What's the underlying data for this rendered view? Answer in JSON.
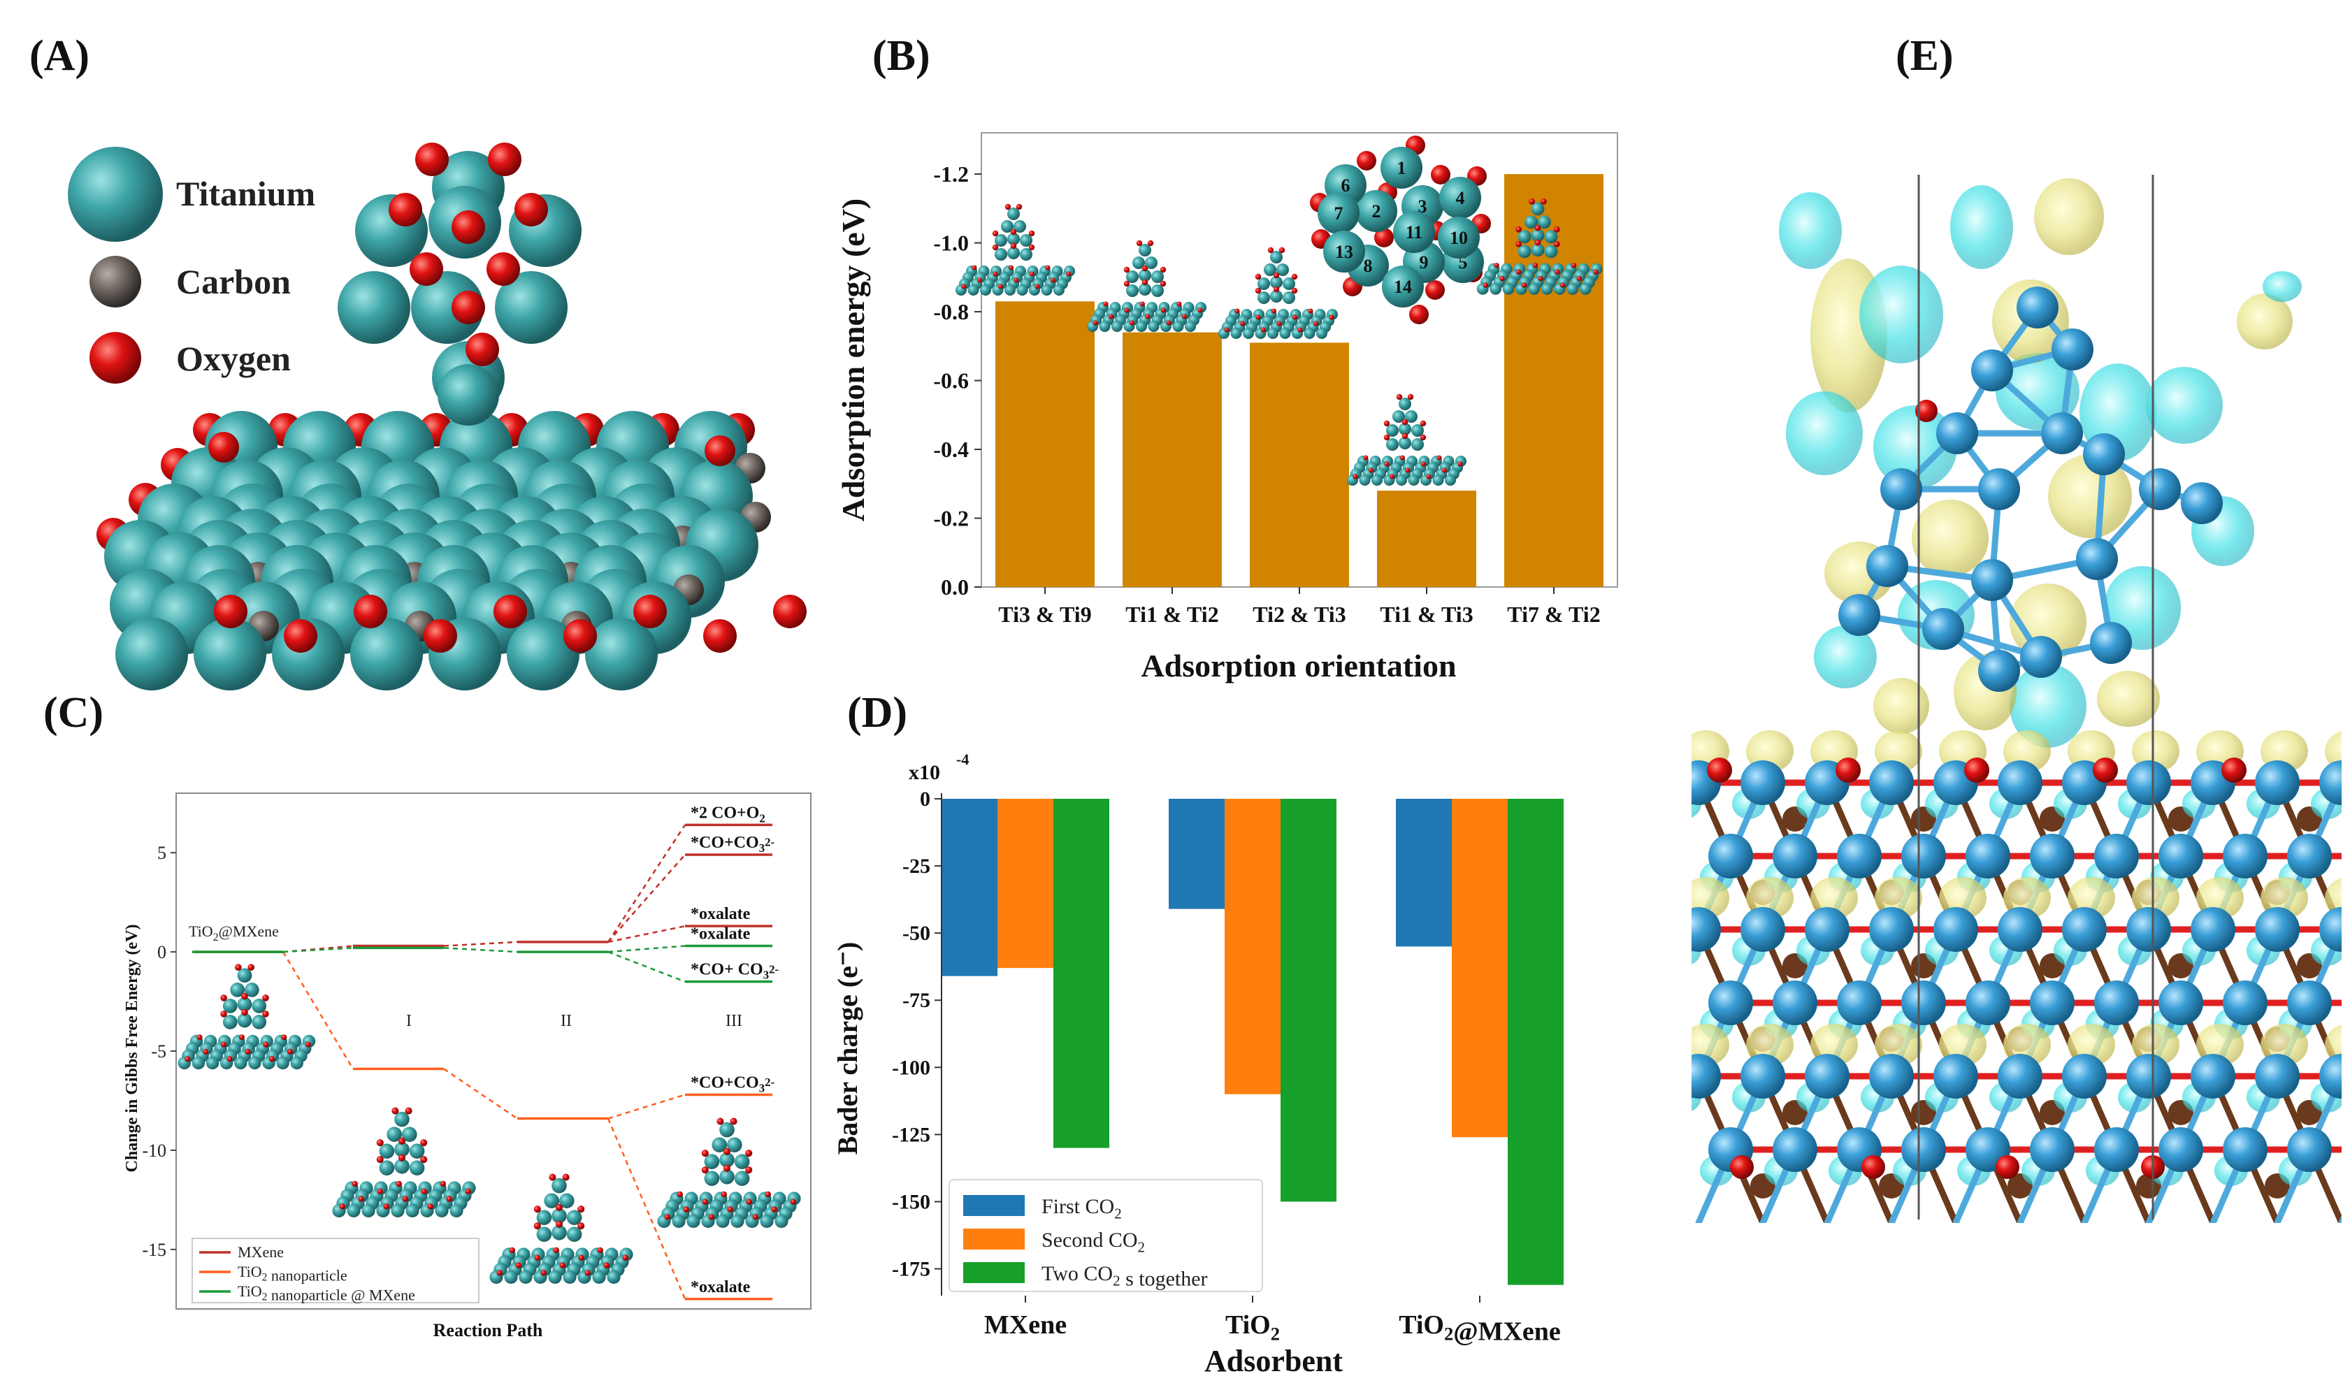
{
  "panels": {
    "A": {
      "label": "(A)",
      "legend": [
        {
          "name": "Titanium",
          "color": "#3a9ea0"
        },
        {
          "name": "Carbon",
          "color": "#6e6560"
        },
        {
          "name": "Oxygen",
          "color": "#e01010"
        }
      ]
    },
    "B": {
      "label": "(B)"
    },
    "C": {
      "label": "(C)"
    },
    "D": {
      "label": "(D)"
    },
    "E": {
      "label": "(E)"
    }
  },
  "chart_data": [
    {
      "id": "B",
      "type": "bar",
      "title": "",
      "xlabel": "Adsorption orientation",
      "ylabel": "Adsorption energy (eV)",
      "categories": [
        "Ti3 & Ti9",
        "Ti1 & Ti2",
        "Ti2 & Ti3",
        "Ti1 & Ti3",
        "Ti7 & Ti2"
      ],
      "values": [
        -0.83,
        -0.74,
        -0.71,
        -0.28,
        -1.2
      ],
      "yticks": [
        "0.0",
        "-0.2",
        "-0.4",
        "-0.6",
        "-0.8",
        "-1.0",
        "-1.2"
      ],
      "ylim": [
        0.0,
        -1.32
      ],
      "bar_color": "#d08400",
      "inset_numbers": [
        "1",
        "2",
        "3",
        "4",
        "5",
        "6",
        "7",
        "8",
        "9",
        "10",
        "11",
        "13",
        "14"
      ]
    },
    {
      "id": "C",
      "type": "line",
      "xlabel": "Reaction Path",
      "ylabel": "Change in Gibbs Free Energy (eV)",
      "ylim": [
        -18,
        8
      ],
      "yticks": [
        "5",
        "0",
        "-5",
        "-10",
        "-15"
      ],
      "stage_labels": [
        "I",
        "II",
        "III"
      ],
      "start_label": "TiO2@MXene",
      "series": [
        {
          "name": "MXene",
          "color": "#c0302a",
          "path": [
            0,
            0.3,
            0.5
          ],
          "final": [
            {
              "label": "*2 CO+O2",
              "value": 6.4
            },
            {
              "label": "*CO+CO3 2-",
              "value": 4.9
            },
            {
              "label": "*oxalate",
              "value": 1.3
            }
          ]
        },
        {
          "name": "TiO2 nanoparticle",
          "color": "#ff5f1f",
          "path": [
            0,
            -5.9,
            -8.4
          ],
          "final": [
            {
              "label": "*CO+CO3 2-",
              "value": -7.2
            },
            {
              "label": "*oxalate",
              "value": -17.5
            }
          ]
        },
        {
          "name": "TiO2 nanoparticle @ MXene",
          "color": "#1a9a3a",
          "path": [
            0,
            0.2,
            0
          ],
          "final": [
            {
              "label": "*oxalate",
              "value": 0.3
            },
            {
              "label": "*CO+ CO3 2-",
              "value": -1.5
            }
          ]
        }
      ],
      "legend": [
        "MXene",
        "TiO2 nanoparticle",
        "TiO2 nanoparticle @ MXene"
      ]
    },
    {
      "id": "D",
      "type": "bar",
      "xlabel": "Adsorbent",
      "ylabel": "Bader charge (e⁻)",
      "scale_label": "x10",
      "scale_exp": "-4",
      "categories": [
        "MXene",
        "TiO2",
        "TiO2@MXene"
      ],
      "ylim": [
        -185,
        0
      ],
      "yticks": [
        "0",
        "-25",
        "-50",
        "-75",
        "-100",
        "-125",
        "-150",
        "-175"
      ],
      "series": [
        {
          "name": "First CO2",
          "color": "#1f77b4",
          "values": [
            -66,
            -41,
            -55
          ]
        },
        {
          "name": "Second CO2",
          "color": "#ff7f0e",
          "values": [
            -63,
            -110,
            -126
          ]
        },
        {
          "name": "Two CO2 s together",
          "color": "#16a02b",
          "values": [
            -130,
            -150,
            -181
          ]
        }
      ]
    }
  ]
}
